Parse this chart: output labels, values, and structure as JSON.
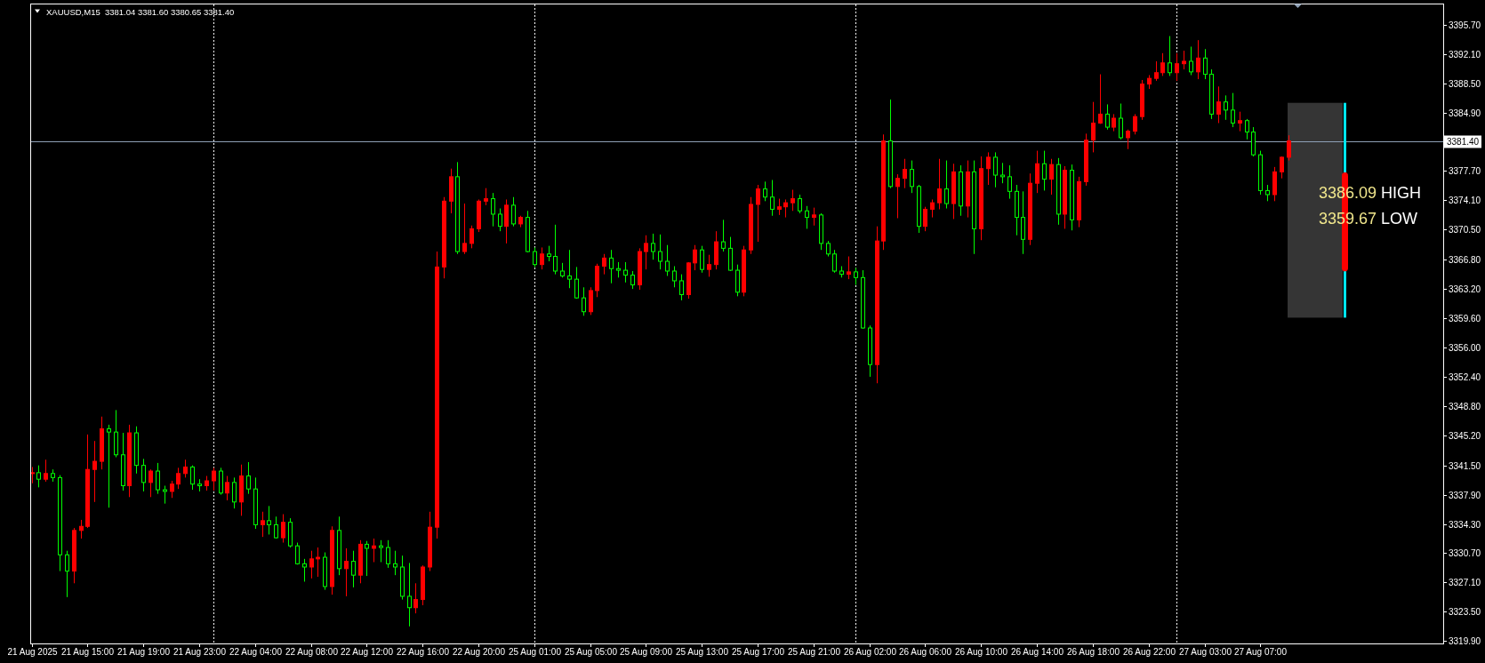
{
  "chart_data": {
    "type": "candlestick",
    "title": "XAUUSD,M15  3381.04 3381.60 3380.65 3381.40",
    "annotations": [
      "3386.09 HIGH",
      "3359.67 LOW"
    ],
    "categories": [
      "21 Aug 2025",
      null,
      null,
      null,
      null,
      null,
      null,
      null,
      "21 Aug 15:00",
      null,
      null,
      null,
      null,
      null,
      null,
      null,
      "21 Aug 19:00",
      null,
      null,
      null,
      null,
      null,
      null,
      null,
      "21 Aug 23:00",
      null,
      null,
      null,
      null,
      null,
      null,
      null,
      "22 Aug 04:00",
      null,
      null,
      null,
      null,
      null,
      null,
      null,
      "22 Aug 08:00",
      null,
      null,
      null,
      null,
      null,
      null,
      null,
      "22 Aug 12:00",
      null,
      null,
      null,
      null,
      null,
      null,
      null,
      "22 Aug 16:00",
      null,
      null,
      null,
      null,
      null,
      null,
      null,
      "22 Aug 20:00",
      null,
      null,
      null,
      null,
      null,
      null,
      null,
      "25 Aug 01:00",
      null,
      null,
      null,
      null,
      null,
      null,
      null,
      "25 Aug 05:00",
      null,
      null,
      null,
      null,
      null,
      null,
      null,
      "25 Aug 09:00",
      null,
      null,
      null,
      null,
      null,
      null,
      null,
      "25 Aug 13:00",
      null,
      null,
      null,
      null,
      null,
      null,
      null,
      "25 Aug 17:00",
      null,
      null,
      null,
      null,
      null,
      null,
      null,
      "25 Aug 21:00",
      null,
      null,
      null,
      null,
      null,
      null,
      null,
      "26 Aug 02:00",
      null,
      null,
      null,
      null,
      null,
      null,
      null,
      "26 Aug 06:00",
      null,
      null,
      null,
      null,
      null,
      null,
      null,
      "26 Aug 10:00",
      null,
      null,
      null,
      null,
      null,
      null,
      null,
      "26 Aug 14:00",
      null,
      null,
      null,
      null,
      null,
      null,
      null,
      "26 Aug 18:00",
      null,
      null,
      null,
      null,
      null,
      null,
      null,
      "26 Aug 22:00",
      null,
      null,
      null,
      null,
      null,
      null,
      null,
      "27 Aug 03:00",
      null,
      null,
      null,
      null,
      null,
      null,
      null,
      "27 Aug 07:00",
      null,
      null,
      null,
      null,
      null,
      null,
      null,
      null,
      null,
      null,
      null,
      null,
      null,
      null,
      null,
      null,
      null,
      null,
      null,
      null,
      null,
      null,
      null,
      null,
      null,
      null
    ],
    "series": [
      {
        "ohlc": [
          [
            3340.5,
            3341.3,
            3339.3,
            3340.6
          ],
          [
            3340.6,
            3341.5,
            3338.8,
            3339.8
          ],
          [
            3339.8,
            3342.2,
            3339.5,
            3340.5
          ],
          [
            3340.5,
            3341,
            3339.5,
            3340
          ],
          [
            3340,
            3340.3,
            3328.5,
            3330.5
          ],
          [
            3330.5,
            3331,
            3325.3,
            3328.5
          ],
          [
            3328.5,
            3333.8,
            3327,
            3333.5
          ],
          [
            3333.5,
            3334.8,
            3332.5,
            3334
          ],
          [
            3334,
            3345.3,
            3333.8,
            3341
          ],
          [
            3341,
            3344.5,
            3337,
            3342
          ],
          [
            3342,
            3347.5,
            3341,
            3346
          ],
          [
            3346,
            3346.5,
            3336.3,
            3345.6
          ],
          [
            3345.6,
            3348.3,
            3342.5,
            3342.8
          ],
          [
            3342.8,
            3345.5,
            3338.4,
            3339
          ],
          [
            3339,
            3346.5,
            3337.6,
            3345.5
          ],
          [
            3345.5,
            3346.3,
            3340.5,
            3341.5
          ],
          [
            3341.5,
            3342.3,
            3338.3,
            3339.4
          ],
          [
            3339.4,
            3341,
            3337.6,
            3340.8
          ],
          [
            3340.8,
            3341.8,
            3338,
            3338.5
          ],
          [
            3338.5,
            3339,
            3336.8,
            3338.3
          ],
          [
            3338.3,
            3339.6,
            3337.5,
            3339.2
          ],
          [
            3339.2,
            3341.2,
            3338.6,
            3340.5
          ],
          [
            3340.5,
            3342.2,
            3340,
            3341.3
          ],
          [
            3341.3,
            3341.5,
            3338.5,
            3339.2
          ],
          [
            3339.2,
            3339.8,
            3338.3,
            3339
          ],
          [
            3339,
            3340.2,
            3338.4,
            3339.6
          ],
          [
            3339.6,
            3341.2,
            3338.4,
            3340.8
          ],
          [
            3340.8,
            3341.2,
            3337.9,
            3338.1
          ],
          [
            3338.1,
            3340.2,
            3337.2,
            3339.4
          ],
          [
            3339.4,
            3340,
            3336.2,
            3337
          ],
          [
            3337,
            3341.6,
            3335.3,
            3340.2
          ],
          [
            3340.2,
            3341.9,
            3338,
            3338.6
          ],
          [
            3338.6,
            3340,
            3333.7,
            3334.2
          ],
          [
            3334.2,
            3335.8,
            3332.7,
            3334.7
          ],
          [
            3334.7,
            3336.5,
            3333,
            3334.2
          ],
          [
            3334.2,
            3335.2,
            3332.5,
            3332.6
          ],
          [
            3332.6,
            3335.5,
            3332,
            3334.5
          ],
          [
            3334.5,
            3335,
            3331.4,
            3331.6
          ],
          [
            3331.6,
            3332,
            3329.3,
            3329.4
          ],
          [
            3329.4,
            3330,
            3327.2,
            3329
          ],
          [
            3329,
            3331,
            3327.6,
            3330
          ],
          [
            3330,
            3331.4,
            3327.8,
            3330.2
          ],
          [
            3330.2,
            3330.8,
            3326.2,
            3326.6
          ],
          [
            3326.6,
            3334,
            3325.6,
            3333.5
          ],
          [
            3333.5,
            3335.2,
            3328,
            3328.8
          ],
          [
            3328.8,
            3331.3,
            3325.4,
            3329.7
          ],
          [
            3329.7,
            3331,
            3326.5,
            3328
          ],
          [
            3328,
            3332.3,
            3327,
            3331.8
          ],
          [
            3331.8,
            3332.2,
            3327.9,
            3331.3
          ],
          [
            3331.3,
            3332.5,
            3329.6,
            3331.6
          ],
          [
            3331.6,
            3332.3,
            3329.6,
            3331.4
          ],
          [
            3331.4,
            3332.3,
            3328.9,
            3329.4
          ],
          [
            3329.4,
            3331,
            3328,
            3329
          ],
          [
            3329,
            3330.4,
            3325,
            3325.4
          ],
          [
            3325.4,
            3329.5,
            3321.7,
            3324
          ],
          [
            3324,
            3327,
            3323.3,
            3325
          ],
          [
            3325,
            3329.2,
            3324.3,
            3329
          ],
          [
            3329,
            3335.8,
            3328.5,
            3333.9
          ],
          [
            3333.9,
            3367.8,
            3332.5,
            3365.9
          ],
          [
            3365.9,
            3374.5,
            3364.5,
            3374
          ],
          [
            3374,
            3378,
            3372.5,
            3377
          ],
          [
            3377,
            3378.8,
            3367.5,
            3367.8
          ],
          [
            3367.8,
            3373.7,
            3367.5,
            3368.8
          ],
          [
            3368.8,
            3371,
            3368.2,
            3370.6
          ],
          [
            3370.6,
            3374.2,
            3370.2,
            3374
          ],
          [
            3374,
            3375.6,
            3373.5,
            3374.3
          ],
          [
            3374.3,
            3375,
            3370.9,
            3372.4
          ],
          [
            3372.4,
            3373.1,
            3370.3,
            3370.9
          ],
          [
            3370.9,
            3374.2,
            3368.8,
            3373.5
          ],
          [
            3373.5,
            3374.5,
            3370.9,
            3371.2
          ],
          [
            3371.2,
            3372.2,
            3370.8,
            3372
          ],
          [
            3372,
            3372.8,
            3367.7,
            3367.8
          ],
          [
            3367.8,
            3368.3,
            3365.9,
            3366.2
          ],
          [
            3366.2,
            3368.3,
            3365.6,
            3367.5
          ],
          [
            3367.5,
            3368.5,
            3366.6,
            3367.2
          ],
          [
            3367.2,
            3371.1,
            3365,
            3365.4
          ],
          [
            3365.4,
            3366.4,
            3364.6,
            3364.8
          ],
          [
            3364.8,
            3368,
            3363.3,
            3364.4
          ],
          [
            3364.4,
            3365.9,
            3362,
            3362.1
          ],
          [
            3362.1,
            3363.4,
            3359.9,
            3360.4
          ],
          [
            3360.4,
            3363.4,
            3360,
            3363
          ],
          [
            3363,
            3366.3,
            3362.2,
            3366
          ],
          [
            3366,
            3367.5,
            3365,
            3367
          ],
          [
            3367,
            3368,
            3363.9,
            3365.7
          ],
          [
            3365.7,
            3366.5,
            3364.6,
            3365.5
          ],
          [
            3365.5,
            3366.5,
            3364,
            3364.9
          ],
          [
            3364.9,
            3365.4,
            3363.2,
            3363.7
          ],
          [
            3363.7,
            3368.2,
            3363.1,
            3367.8
          ],
          [
            3367.8,
            3369.8,
            3365.6,
            3368.8
          ],
          [
            3368.8,
            3370,
            3366.8,
            3367.8
          ],
          [
            3367.8,
            3369.9,
            3365.6,
            3366.6
          ],
          [
            3366.6,
            3368.6,
            3364.8,
            3365.4
          ],
          [
            3365.4,
            3366,
            3363.4,
            3364.2
          ],
          [
            3364.2,
            3365,
            3361.8,
            3362.5
          ],
          [
            3362.5,
            3366.5,
            3362,
            3366.4
          ],
          [
            3366.4,
            3368.6,
            3365.5,
            3368
          ],
          [
            3368,
            3368.5,
            3365.2,
            3365.6
          ],
          [
            3365.6,
            3367.4,
            3364.7,
            3366.2
          ],
          [
            3366.2,
            3370.3,
            3365.6,
            3369
          ],
          [
            3369,
            3371.7,
            3367.8,
            3368.2
          ],
          [
            3368.2,
            3369.6,
            3365.4,
            3365.5
          ],
          [
            3365.5,
            3366.2,
            3362.3,
            3362.8
          ],
          [
            3362.8,
            3368.5,
            3362.3,
            3368
          ],
          [
            3368,
            3374.5,
            3367.5,
            3373.6
          ],
          [
            3373.6,
            3376,
            3369,
            3375.5
          ],
          [
            3375.5,
            3376.4,
            3374,
            3374.5
          ],
          [
            3374.5,
            3376.6,
            3372.2,
            3373
          ],
          [
            3373,
            3374.3,
            3372.3,
            3373.3
          ],
          [
            3373.3,
            3374.2,
            3372,
            3373.8
          ],
          [
            3373.8,
            3375.4,
            3372.8,
            3374.3
          ],
          [
            3374.3,
            3374.8,
            3372.5,
            3372.8
          ],
          [
            3372.8,
            3373.4,
            3370.6,
            3372
          ],
          [
            3372,
            3373.2,
            3371,
            3372.3
          ],
          [
            3372.3,
            3372.5,
            3368,
            3368.8
          ],
          [
            3368.8,
            3369.1,
            3367.2,
            3367.5
          ],
          [
            3367.5,
            3368,
            3365.2,
            3365.4
          ],
          [
            3365.4,
            3366,
            3364.6,
            3365
          ],
          [
            3365,
            3367.2,
            3364.4,
            3365.3
          ],
          [
            3365.3,
            3365.8,
            3363.7,
            3364.6
          ],
          [
            3364.6,
            3365.5,
            3358.3,
            3358.4
          ],
          [
            3358.4,
            3358.7,
            3352.4,
            3353.9
          ],
          [
            3353.9,
            3370.9,
            3351.6,
            3369.1
          ],
          [
            3369.1,
            3382.2,
            3368,
            3381.4
          ],
          [
            3381.4,
            3386.5,
            3375.6,
            3375.8
          ],
          [
            3375.8,
            3377.3,
            3371.9,
            3376.8
          ],
          [
            3376.8,
            3379.2,
            3375.6,
            3377.9
          ],
          [
            3377.9,
            3379,
            3375,
            3375.8
          ],
          [
            3375.8,
            3376,
            3370.1,
            3370.9
          ],
          [
            3370.9,
            3373.3,
            3370.3,
            3373
          ],
          [
            3373,
            3374.2,
            3372,
            3373.8
          ],
          [
            3373.8,
            3379.2,
            3373,
            3375.5
          ],
          [
            3375.5,
            3379,
            3373.1,
            3373.7
          ],
          [
            3373.7,
            3378.6,
            3371.8,
            3377.6
          ],
          [
            3377.6,
            3378.4,
            3372.2,
            3373.4
          ],
          [
            3373.4,
            3379,
            3372,
            3377.6
          ],
          [
            3377.6,
            3379,
            3367.5,
            3370.6
          ],
          [
            3370.6,
            3379.5,
            3369.2,
            3378
          ],
          [
            3378,
            3380,
            3376,
            3379.4
          ],
          [
            3379.4,
            3380,
            3375.7,
            3377.2
          ],
          [
            3377.2,
            3378.7,
            3376.2,
            3377
          ],
          [
            3377,
            3378.4,
            3374.3,
            3375.2
          ],
          [
            3375.2,
            3376,
            3369.8,
            3372
          ],
          [
            3372,
            3375.2,
            3367.5,
            3369.3
          ],
          [
            3369.3,
            3377.4,
            3368.6,
            3376.2
          ],
          [
            3376.2,
            3380.2,
            3375,
            3378.6
          ],
          [
            3378.6,
            3380.2,
            3375.3,
            3376.7
          ],
          [
            3376.7,
            3379.2,
            3374.8,
            3378.5
          ],
          [
            3378.5,
            3379.3,
            3371.1,
            3372.4
          ],
          [
            3372.4,
            3378.3,
            3370.6,
            3377.8
          ],
          [
            3377.8,
            3378.5,
            3370.4,
            3371.7
          ],
          [
            3371.7,
            3377,
            3370.8,
            3376.4
          ],
          [
            3376.4,
            3382.3,
            3375.9,
            3381.5
          ],
          [
            3381.5,
            3386.2,
            3380,
            3383.6
          ],
          [
            3383.6,
            3389.6,
            3383.5,
            3384.7
          ],
          [
            3384.7,
            3385.9,
            3382.8,
            3383.1
          ],
          [
            3383.1,
            3384.7,
            3382.6,
            3384.2
          ],
          [
            3384.2,
            3386,
            3381.6,
            3381.8
          ],
          [
            3381.8,
            3382.8,
            3380.4,
            3382.6
          ],
          [
            3382.6,
            3384.7,
            3382.2,
            3384.4
          ],
          [
            3384.4,
            3388.9,
            3384,
            3388.4
          ],
          [
            3388.4,
            3389.5,
            3387.8,
            3389.1
          ],
          [
            3389.1,
            3391.2,
            3388.8,
            3389.8
          ],
          [
            3389.8,
            3392.2,
            3389.4,
            3391
          ],
          [
            3391,
            3394.3,
            3389.4,
            3389.8
          ],
          [
            3389.8,
            3392.2,
            3388.8,
            3390.9
          ],
          [
            3390.9,
            3392.5,
            3390.2,
            3391.2
          ],
          [
            3391.2,
            3393,
            3389.5,
            3389.9
          ],
          [
            3389.9,
            3393.8,
            3389,
            3391.6
          ],
          [
            3391.6,
            3392.7,
            3389,
            3389.6
          ],
          [
            3389.6,
            3390.2,
            3384.1,
            3384.7
          ],
          [
            3384.7,
            3388.1,
            3383.6,
            3386.2
          ],
          [
            3386.2,
            3387,
            3384,
            3385.2
          ],
          [
            3385.2,
            3387.3,
            3383.1,
            3383.6
          ],
          [
            3383.6,
            3385,
            3382.6,
            3383.9
          ],
          [
            3383.9,
            3384.1,
            3381.6,
            3382.5
          ],
          [
            3382.5,
            3383.1,
            3379.5,
            3379.7
          ],
          [
            3379.7,
            3380.2,
            3374.8,
            3375.3
          ],
          [
            3375.3,
            3376,
            3374,
            3374.8
          ],
          [
            3374.8,
            3378.2,
            3374,
            3377.6
          ],
          [
            3377.6,
            3379.5,
            3376.8,
            3379.4
          ],
          [
            3379.4,
            3382.1,
            3379,
            3381.4
          ],
          null,
          null,
          null,
          null,
          null,
          null,
          null,
          null,
          null,
          null,
          null,
          null,
          null,
          null,
          null,
          null,
          null,
          null,
          null,
          null,
          null,
          null
        ],
        "colors": [
          "#ff0000",
          "#00ff00",
          "#ff0000",
          "#00ff00",
          "#00ff00",
          "#00ff00",
          "#ff0000",
          "#ff0000",
          "#ff0000",
          "#ff0000",
          "#ff0000",
          "#00ff00",
          "#00ff00",
          "#00ff00",
          "#ff0000",
          "#00ff00",
          "#00ff00",
          "#ff0000",
          "#00ff00",
          "#00ff00",
          "#ff0000",
          "#ff0000",
          "#ff0000",
          "#00ff00",
          "#00ff00",
          "#ff0000",
          "#ff0000",
          "#00ff00",
          "#ff0000",
          "#00ff00",
          "#ff0000",
          "#00ff00",
          "#00ff00",
          "#ff0000",
          "#00ff00",
          "#00ff00",
          "#ff0000",
          "#00ff00",
          "#00ff00",
          "#00ff00",
          "#ff0000",
          "#ff0000",
          "#00ff00",
          "#ff0000",
          "#00ff00",
          "#ff0000",
          "#00ff00",
          "#ff0000",
          "#00ff00",
          "#ff0000",
          "#00ff00",
          "#00ff00",
          "#00ff00",
          "#00ff00",
          "#00ff00",
          "#ff0000",
          "#ff0000",
          "#ff0000",
          "#ff0000",
          "#ff0000",
          "#ff0000",
          "#00ff00",
          "#ff0000",
          "#ff0000",
          "#ff0000",
          "#ff0000",
          "#00ff00",
          "#00ff00",
          "#ff0000",
          "#00ff00",
          "#ff0000",
          "#00ff00",
          "#00ff00",
          "#ff0000",
          "#00ff00",
          "#00ff00",
          "#00ff00",
          "#00ff00",
          "#00ff00",
          "#00ff00",
          "#ff0000",
          "#ff0000",
          "#ff0000",
          "#00ff00",
          "#00ff00",
          "#00ff00",
          "#00ff00",
          "#ff0000",
          "#ff0000",
          "#00ff00",
          "#00ff00",
          "#00ff00",
          "#00ff00",
          "#00ff00",
          "#ff0000",
          "#ff0000",
          "#00ff00",
          "#ff0000",
          "#ff0000",
          "#00ff00",
          "#00ff00",
          "#00ff00",
          "#ff0000",
          "#ff0000",
          "#ff0000",
          "#00ff00",
          "#00ff00",
          "#ff0000",
          "#ff0000",
          "#ff0000",
          "#00ff00",
          "#00ff00",
          "#ff0000",
          "#00ff00",
          "#00ff00",
          "#00ff00",
          "#00ff00",
          "#ff0000",
          "#00ff00",
          "#00ff00",
          "#00ff00",
          "#ff0000",
          "#ff0000",
          "#00ff00",
          "#ff0000",
          "#ff0000",
          "#00ff00",
          "#00ff00",
          "#ff0000",
          "#ff0000",
          "#ff0000",
          "#00ff00",
          "#ff0000",
          "#00ff00",
          "#ff0000",
          "#00ff00",
          "#ff0000",
          "#ff0000",
          "#00ff00",
          "#00ff00",
          "#00ff00",
          "#00ff00",
          "#00ff00",
          "#ff0000",
          "#ff0000",
          "#00ff00",
          "#ff0000",
          "#00ff00",
          "#ff0000",
          "#00ff00",
          "#ff0000",
          "#ff0000",
          "#ff0000",
          "#ff0000",
          "#00ff00",
          "#ff0000",
          "#00ff00",
          "#ff0000",
          "#ff0000",
          "#ff0000",
          "#ff0000",
          "#ff0000",
          "#ff0000",
          "#00ff00",
          "#ff0000",
          "#ff0000",
          "#00ff00",
          "#ff0000",
          "#00ff00",
          "#00ff00",
          "#ff0000",
          "#00ff00",
          "#00ff00",
          "#ff0000",
          "#00ff00",
          "#00ff00",
          "#00ff00",
          "#00ff00",
          "#ff0000",
          "#ff0000",
          "#ff0000",
          null,
          null,
          null,
          null,
          null,
          null,
          null,
          null,
          null,
          null,
          null,
          null,
          null,
          null,
          null,
          null,
          null,
          null,
          null,
          null,
          null,
          null
        ]
      },
      {
        "color": "#00e5ee",
        "ohlc": [
          null,
          null,
          null,
          null,
          null,
          null,
          null,
          null,
          null,
          null,
          null,
          null,
          null,
          null,
          null,
          null,
          null,
          null,
          null,
          null,
          null,
          null,
          null,
          null,
          null,
          null,
          null,
          null,
          null,
          null,
          null,
          null,
          null,
          null,
          null,
          null,
          null,
          null,
          null,
          null,
          null,
          null,
          null,
          null,
          null,
          null,
          null,
          null,
          null,
          null,
          null,
          null,
          null,
          null,
          null,
          null,
          null,
          null,
          null,
          null,
          null,
          null,
          null,
          null,
          null,
          null,
          null,
          null,
          null,
          null,
          null,
          null,
          null,
          null,
          null,
          null,
          null,
          null,
          null,
          null,
          null,
          null,
          null,
          null,
          null,
          null,
          null,
          null,
          null,
          null,
          null,
          null,
          null,
          null,
          null,
          null,
          null,
          null,
          null,
          null,
          null,
          null,
          null,
          null,
          null,
          null,
          null,
          null,
          null,
          null,
          null,
          null,
          null,
          null,
          null,
          null,
          null,
          null,
          null,
          null,
          null,
          null,
          null,
          null,
          null,
          null,
          null,
          null,
          null,
          null,
          null,
          null,
          null,
          null,
          null,
          null,
          null,
          null,
          null,
          null,
          null,
          null,
          null,
          null,
          null,
          null,
          null,
          null,
          null,
          null,
          null,
          null,
          null,
          null,
          null,
          null,
          null,
          null,
          null,
          null,
          null,
          null,
          null,
          null,
          null,
          null,
          null,
          null,
          null,
          null,
          null,
          null,
          null,
          null,
          null,
          null,
          null,
          null,
          null,
          null,
          null,
          null,
          null,
          null,
          null,
          null,
          null,
          null,
          [
            3365.4,
            3386.09,
            3359.67,
            3377.5
          ],
          null,
          null,
          null,
          null,
          null,
          null,
          null,
          null,
          null,
          null,
          null,
          null,
          null,
          null
        ],
        "colors": [
          null,
          null,
          null,
          null,
          null,
          null,
          null,
          null,
          null,
          null,
          null,
          null,
          null,
          null,
          null,
          null,
          null,
          null,
          null,
          null,
          null,
          null,
          null,
          null,
          null,
          null,
          null,
          null,
          null,
          null,
          null,
          null,
          null,
          null,
          null,
          null,
          null,
          null,
          null,
          null,
          null,
          null,
          null,
          null,
          null,
          null,
          null,
          null,
          null,
          null,
          null,
          null,
          null,
          null,
          null,
          null,
          null,
          null,
          null,
          null,
          null,
          null,
          null,
          null,
          null,
          null,
          null,
          null,
          null,
          null,
          null,
          null,
          null,
          null,
          null,
          null,
          null,
          null,
          null,
          null,
          null,
          null,
          null,
          null,
          null,
          null,
          null,
          null,
          null,
          null,
          null,
          null,
          null,
          null,
          null,
          null,
          null,
          null,
          null,
          null,
          null,
          null,
          null,
          null,
          null,
          null,
          null,
          null,
          null,
          null,
          null,
          null,
          null,
          null,
          null,
          null,
          null,
          null,
          null,
          null,
          null,
          null,
          null,
          null,
          null,
          null,
          null,
          null,
          null,
          null,
          null,
          null,
          null,
          null,
          null,
          null,
          null,
          null,
          null,
          null,
          null,
          null,
          null,
          null,
          null,
          null,
          null,
          null,
          null,
          null,
          null,
          null,
          null,
          null,
          null,
          null,
          null,
          null,
          null,
          null,
          null,
          null,
          null,
          null,
          null,
          null,
          null,
          null,
          null,
          null,
          null,
          null,
          null,
          null,
          null,
          null,
          null,
          null,
          null,
          null,
          null,
          null,
          null,
          null,
          null,
          null,
          null,
          null,
          "#ff0000",
          null,
          null,
          null,
          null,
          null,
          null,
          null,
          null,
          null,
          null,
          null,
          null,
          null,
          null
        ]
      }
    ],
    "ylim": [
      3319.6,
      3398.3
    ],
    "yticks": [
      {
        "value": 3395.7,
        "label": "3395.70"
      },
      {
        "value": 3392.1,
        "label": "3392.10"
      },
      {
        "value": 3388.5,
        "label": "3388.50"
      },
      {
        "value": 3384.9,
        "label": "3384.90"
      },
      {
        "value": 3377.7,
        "label": "3377.70"
      },
      {
        "value": 3374.1,
        "label": "3374.10"
      },
      {
        "value": 3370.5,
        "label": "3370.50"
      },
      {
        "value": 3366.8,
        "label": "3366.80"
      },
      {
        "value": 3363.2,
        "label": "3363.20"
      },
      {
        "value": 3359.6,
        "label": "3359.60"
      },
      {
        "value": 3356,
        "label": "3356.00"
      },
      {
        "value": 3352.4,
        "label": "3352.40"
      },
      {
        "value": 3348.8,
        "label": "3348.80"
      },
      {
        "value": 3345.2,
        "label": "3345.20"
      },
      {
        "value": 3341.5,
        "label": "3341.50"
      },
      {
        "value": 3337.9,
        "label": "3337.90"
      },
      {
        "value": 3334.3,
        "label": "3334.30"
      },
      {
        "value": 3330.7,
        "label": "3330.70"
      },
      {
        "value": 3327.1,
        "label": "3327.10"
      },
      {
        "value": 3323.5,
        "label": "3323.50"
      },
      {
        "value": 3319.9,
        "label": "3319.90"
      }
    ],
    "ref_lines": [
      {
        "axis": "y",
        "value": 3381.4,
        "label": "3381.40",
        "color": "#8ea0b6"
      }
    ]
  }
}
